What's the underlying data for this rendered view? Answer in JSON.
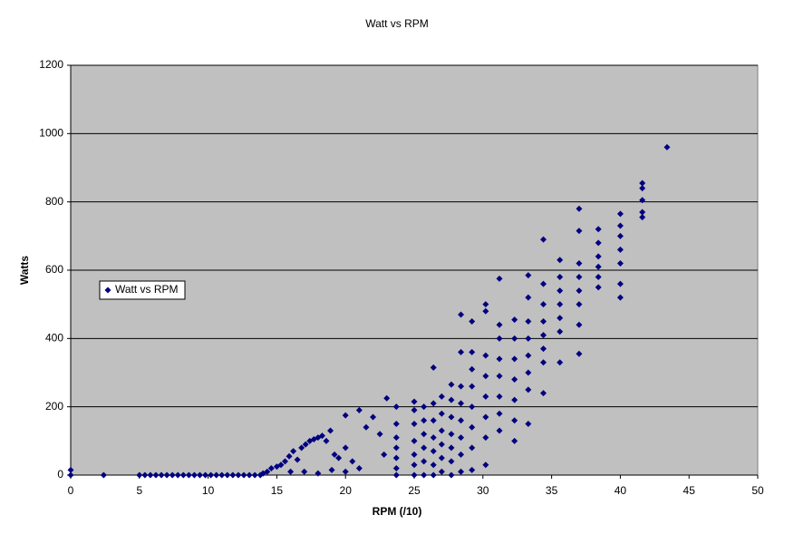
{
  "chart_data": {
    "type": "scatter",
    "title": "Watt vs RPM",
    "x_label": "RPM (/10)",
    "y_label": "Watts",
    "xlim": [
      0,
      50
    ],
    "xticks": [
      0,
      5,
      10,
      15,
      20,
      25,
      30,
      35,
      40,
      45,
      50
    ],
    "ylim": [
      0,
      1200
    ],
    "yticks": [
      0,
      200,
      400,
      600,
      800,
      1000,
      1200
    ],
    "grid": true,
    "legend": "left",
    "x": [
      0,
      0,
      2.4,
      5,
      5.4,
      5.8,
      6.2,
      6.6,
      7,
      7.4,
      7.8,
      8.2,
      8.6,
      9,
      9.4,
      9.8,
      10.2,
      10.6,
      11,
      11.4,
      11.8,
      12.2,
      12.6,
      13,
      13.4,
      13.8,
      14,
      14.3,
      14.6,
      15,
      15.3,
      15.6,
      15.9,
      16.2,
      16.5,
      16.8,
      17.1,
      17.4,
      17.7,
      18,
      18.3,
      18.6,
      18.9,
      19.2,
      19.5,
      20,
      20,
      20.5,
      21,
      21.5,
      22,
      22.5,
      23,
      22.8,
      21,
      17,
      18,
      19,
      20,
      16,
      23.7,
      23.7,
      23.7,
      23.7,
      23.7,
      23.7,
      23.7,
      25,
      25,
      25,
      25,
      25,
      25,
      25,
      25.7,
      25.7,
      25.7,
      25.7,
      25.7,
      25.7,
      26.4,
      26.4,
      26.4,
      26.4,
      26.4,
      26.4,
      26.4,
      27,
      27,
      27,
      27,
      27,
      27,
      27.7,
      27.7,
      27.7,
      27.7,
      27.7,
      27.7,
      27.7,
      28.4,
      28.4,
      28.4,
      28.4,
      28.4,
      28.4,
      28.4,
      28.4,
      29.2,
      29.2,
      29.2,
      29.2,
      29.2,
      29.2,
      29.2,
      29.2,
      30.2,
      30.2,
      30.2,
      30.2,
      30.2,
      30.2,
      30.2,
      30.2,
      31.2,
      31.2,
      31.2,
      31.2,
      31.2,
      31.2,
      31.2,
      31.2,
      32.3,
      32.3,
      32.3,
      32.3,
      32.3,
      32.3,
      32.3,
      33.3,
      33.3,
      33.3,
      33.3,
      33.3,
      33.3,
      33.3,
      33.3,
      34.4,
      34.4,
      34.4,
      34.4,
      34.4,
      34.4,
      34.4,
      34.4,
      35.6,
      35.6,
      35.6,
      35.6,
      35.6,
      35.6,
      35.6,
      37,
      37,
      37,
      37,
      37,
      37,
      37,
      37,
      38.4,
      38.4,
      38.4,
      38.4,
      38.4,
      38.4,
      40,
      40,
      40,
      40,
      40,
      40,
      40,
      41.6,
      41.6,
      41.6,
      41.6,
      41.6,
      43.4
    ],
    "series": [
      {
        "name": "Watt vs RPM",
        "color": "#000080",
        "values": [
          15,
          0,
          0,
          0,
          0,
          0,
          0,
          0,
          0,
          0,
          0,
          0,
          0,
          0,
          0,
          0,
          0,
          0,
          0,
          0,
          0,
          0,
          0,
          0,
          0,
          0,
          5,
          10,
          20,
          25,
          30,
          40,
          55,
          70,
          45,
          80,
          90,
          100,
          105,
          110,
          115,
          100,
          130,
          60,
          50,
          175,
          80,
          40,
          190,
          140,
          170,
          120,
          225,
          60,
          20,
          10,
          5,
          15,
          10,
          10,
          0,
          20,
          50,
          80,
          110,
          150,
          200,
          0,
          30,
          60,
          100,
          150,
          190,
          215,
          0,
          40,
          80,
          120,
          160,
          200,
          0,
          30,
          70,
          110,
          160,
          210,
          315,
          10,
          50,
          90,
          130,
          180,
          230,
          0,
          40,
          80,
          120,
          170,
          220,
          265,
          10,
          60,
          110,
          160,
          210,
          260,
          360,
          470,
          15,
          80,
          140,
          200,
          260,
          310,
          360,
          450,
          30,
          110,
          170,
          230,
          290,
          350,
          480,
          500,
          130,
          180,
          230,
          290,
          340,
          400,
          440,
          575,
          100,
          160,
          220,
          280,
          340,
          400,
          455,
          150,
          250,
          300,
          350,
          400,
          450,
          520,
          585,
          240,
          330,
          370,
          410,
          450,
          500,
          560,
          690,
          330,
          420,
          460,
          500,
          540,
          580,
          630,
          355,
          440,
          500,
          540,
          580,
          620,
          715,
          780,
          550,
          580,
          610,
          640,
          680,
          720,
          520,
          560,
          620,
          660,
          700,
          730,
          765,
          755,
          770,
          805,
          840,
          855,
          960
        ]
      }
    ]
  }
}
